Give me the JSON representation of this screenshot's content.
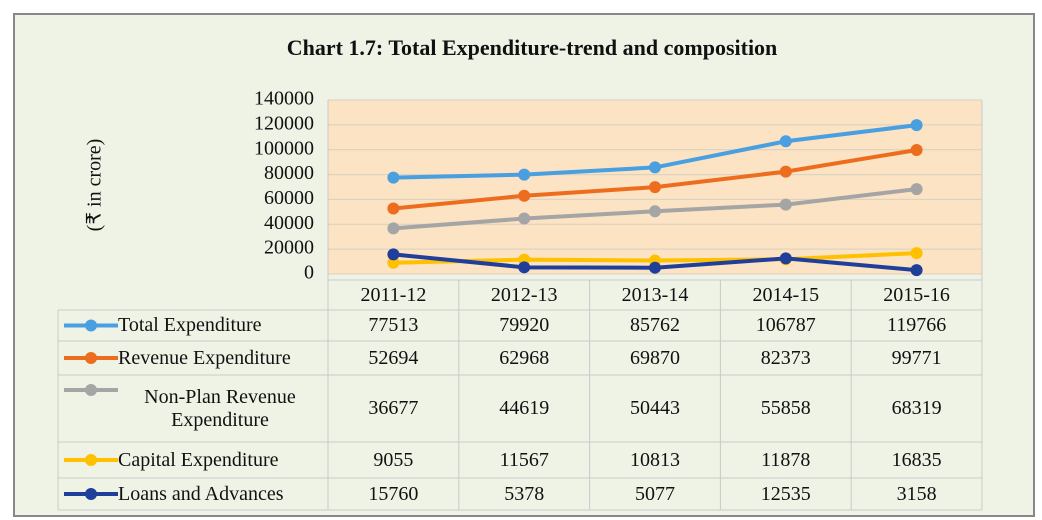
{
  "chart_data": {
    "type": "line",
    "title": "Chart 1.7: Total Expenditure-trend and composition",
    "y_label": "(₹ in crore)",
    "categories": [
      "2011-12",
      "2012-13",
      "2013-14",
      "2014-15",
      "2015-16"
    ],
    "ylim": [
      0,
      140000
    ],
    "yticks": [
      0,
      20000,
      40000,
      60000,
      80000,
      100000,
      120000,
      140000
    ],
    "grid": true,
    "series": [
      {
        "name": "Total Expenditure",
        "color": "#4a9fe0",
        "values": [
          77513,
          79920,
          85762,
          106787,
          119766
        ]
      },
      {
        "name": "Revenue Expenditure",
        "color": "#ed6d1f",
        "values": [
          52694,
          62968,
          69870,
          82373,
          99771
        ]
      },
      {
        "name": "Non-Plan Revenue Expenditure",
        "color": "#a5a5a5",
        "values": [
          36677,
          44619,
          50443,
          55858,
          68319
        ]
      },
      {
        "name": "Capital Expenditure",
        "color": "#ffc000",
        "values": [
          9055,
          11567,
          10813,
          11878,
          16835
        ]
      },
      {
        "name": "Loans and Advances",
        "color": "#1f3f9a",
        "values": [
          15760,
          5378,
          5077,
          12535,
          3158
        ]
      }
    ]
  }
}
